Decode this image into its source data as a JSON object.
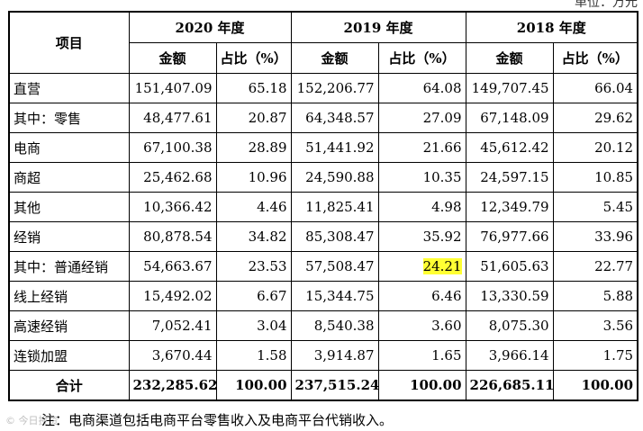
{
  "unit_text": "单位：万元",
  "headers": {
    "item": "项目",
    "years": [
      "2020 年度",
      "2019 年度",
      "2018 年度"
    ],
    "amount": "金额",
    "share": "占比（%）"
  },
  "rows": [
    {
      "label": "直营",
      "values": [
        "151,407.09",
        "65.18",
        "152,206.77",
        "64.08",
        "149,707.45",
        "66.04"
      ]
    },
    {
      "label": "其中：零售",
      "values": [
        "48,477.61",
        "20.87",
        "64,348.57",
        "27.09",
        "67,148.09",
        "29.62"
      ]
    },
    {
      "label": "电商",
      "values": [
        "67,100.38",
        "28.89",
        "51,441.92",
        "21.66",
        "45,612.42",
        "20.12"
      ]
    },
    {
      "label": "商超",
      "values": [
        "25,462.68",
        "10.96",
        "24,590.88",
        "10.35",
        "24,597.15",
        "10.85"
      ]
    },
    {
      "label": "其他",
      "values": [
        "10,366.42",
        "4.46",
        "11,825.41",
        "4.98",
        "12,349.79",
        "5.45"
      ]
    },
    {
      "label": "经销",
      "values": [
        "80,878.54",
        "34.82",
        "85,308.47",
        "35.92",
        "76,977.66",
        "33.96"
      ]
    },
    {
      "label": "其中：普通经销",
      "values": [
        "54,663.67",
        "23.53",
        "57,508.47",
        "24.21",
        "51,605.63",
        "22.77"
      ]
    },
    {
      "label": "线上经销",
      "values": [
        "15,492.02",
        "6.67",
        "15,344.75",
        "6.46",
        "13,330.59",
        "5.88"
      ]
    },
    {
      "label": "高速经销",
      "values": [
        "7,052.41",
        "3.04",
        "8,540.38",
        "3.60",
        "8,075.30",
        "3.56"
      ]
    },
    {
      "label": "连锁加盟",
      "values": [
        "3,670.44",
        "1.58",
        "3,914.87",
        "1.65",
        "3,966.14",
        "1.75"
      ]
    }
  ],
  "total": {
    "label": "合计",
    "values": [
      "232,285.62",
      "100.00",
      "237,515.24",
      "100.00",
      "226,685.11",
      "100.00"
    ]
  },
  "note": "注：电商渠道包括电商平台零售收入及电商平台代销收入。",
  "watermark": "© 今日投资"
}
